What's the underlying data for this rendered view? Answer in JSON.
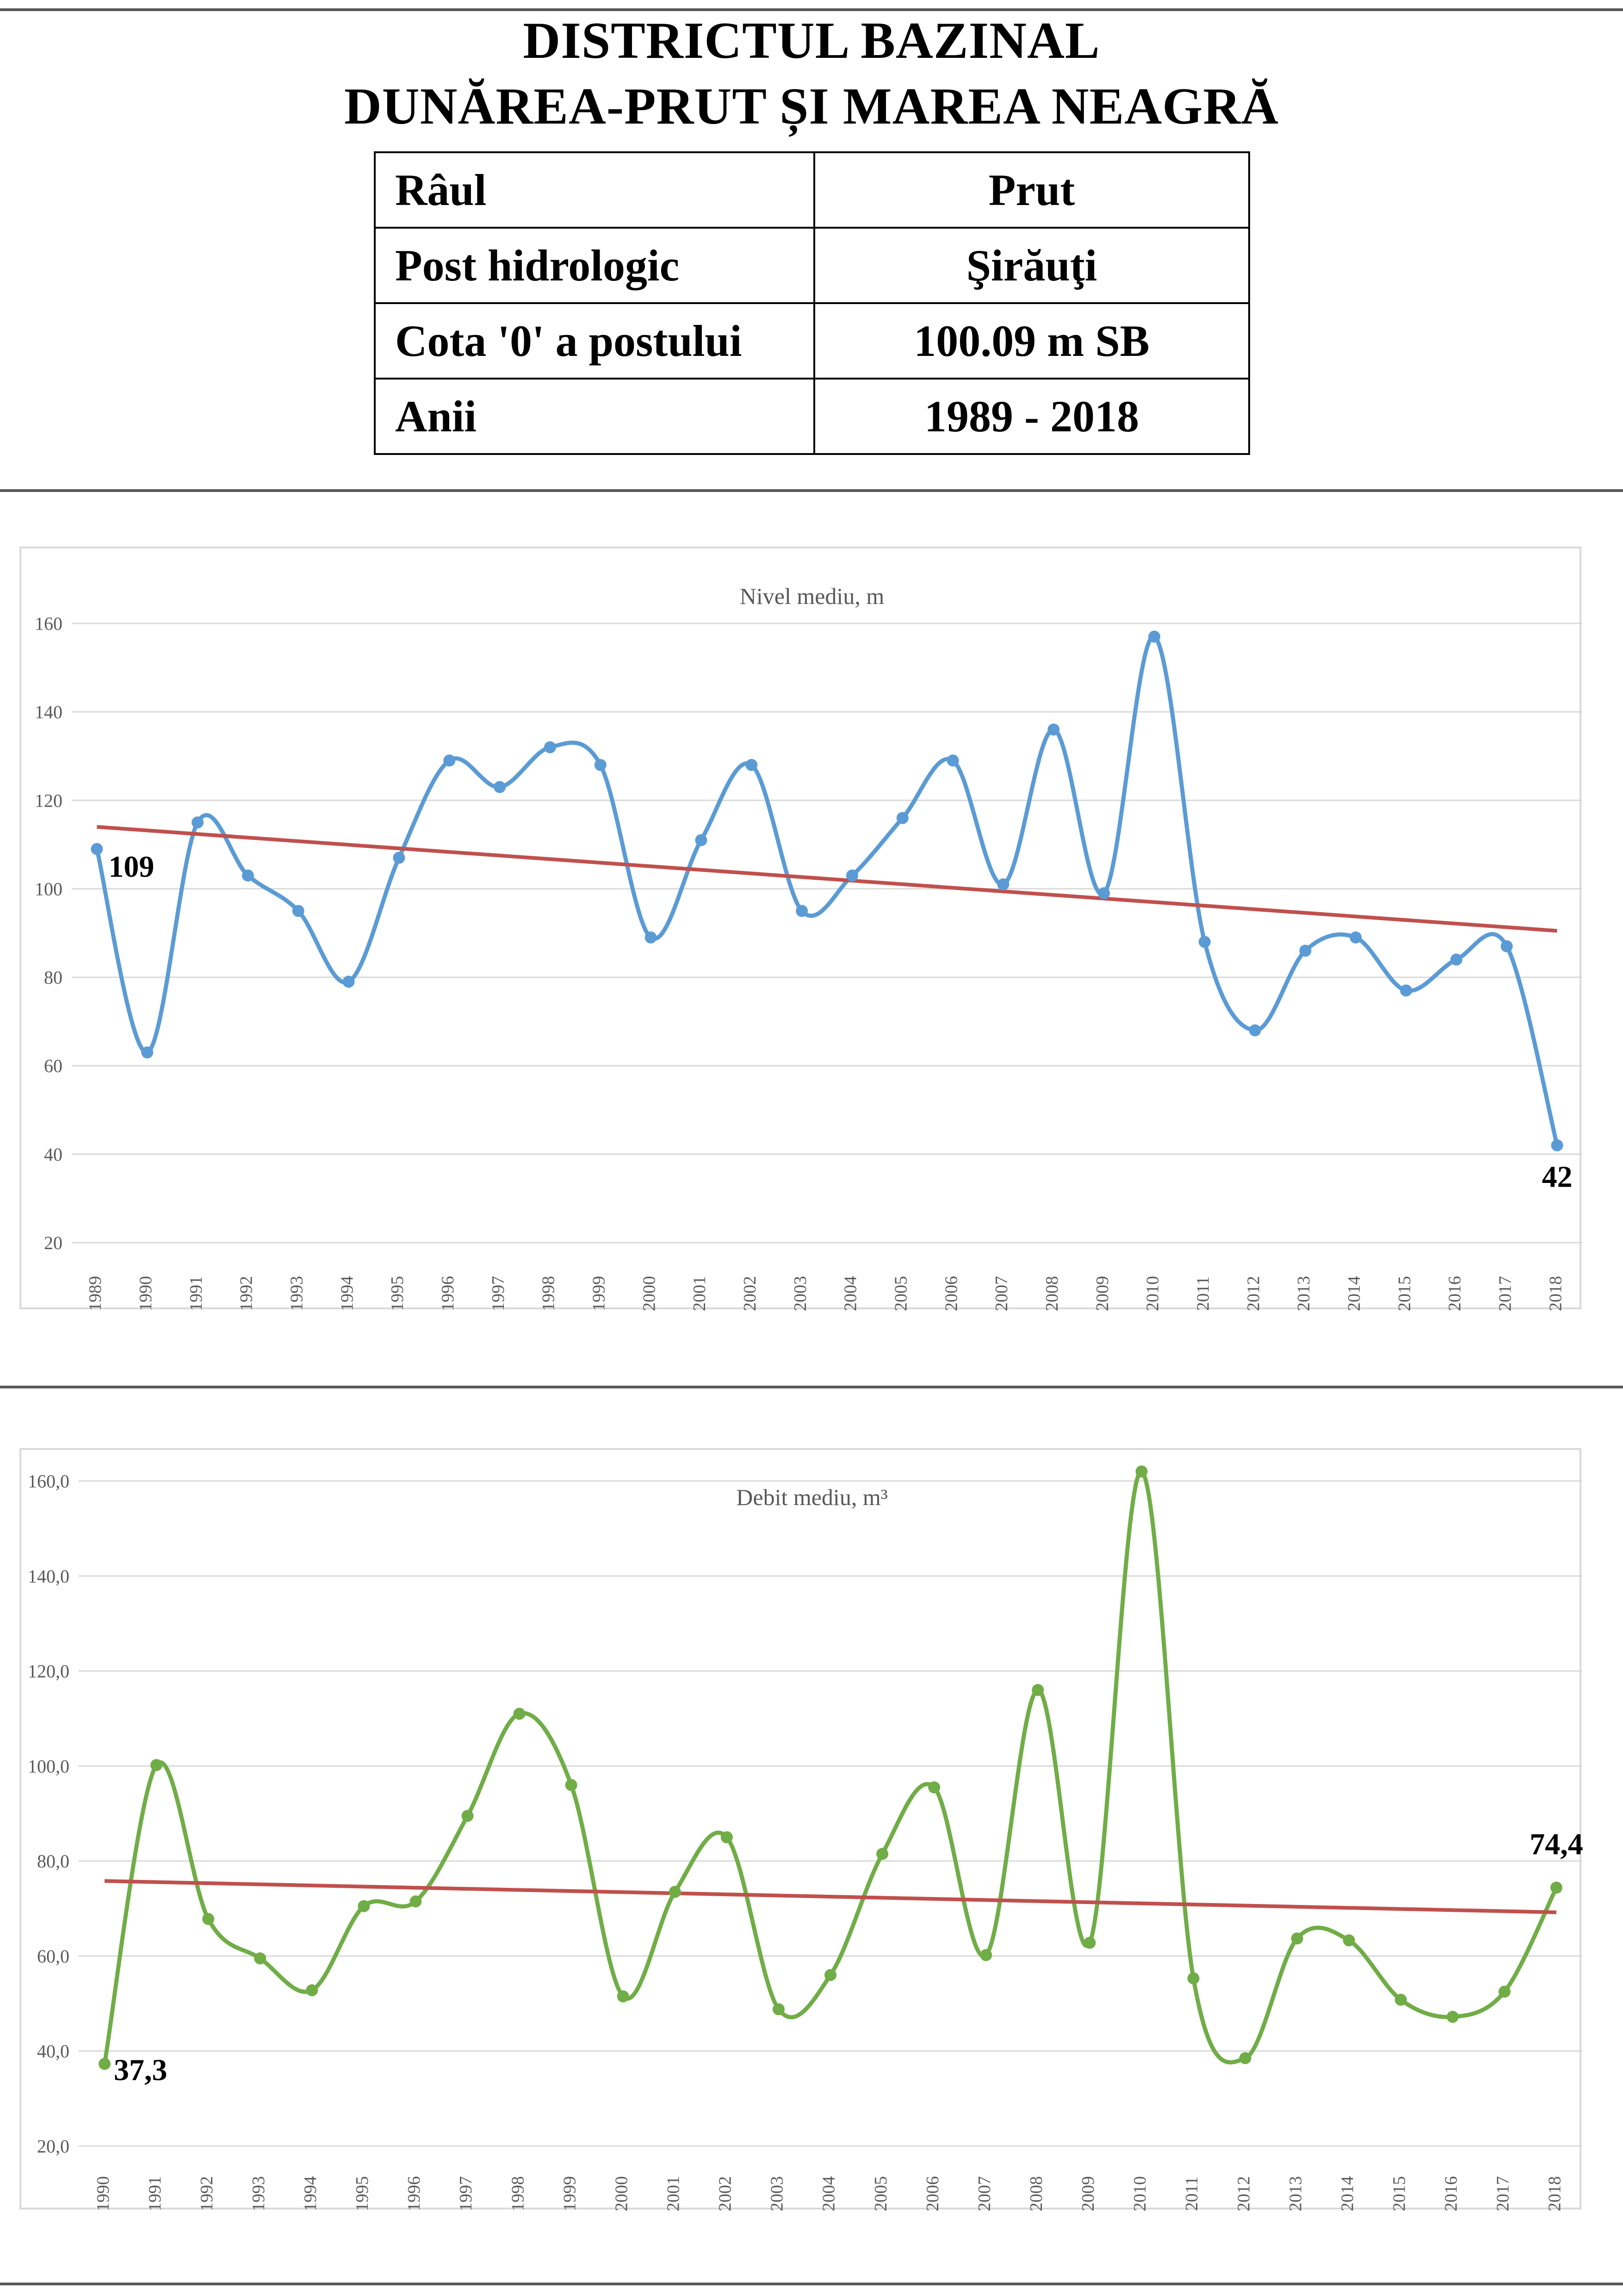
{
  "header": {
    "title_line1": "DISTRICTUL BAZINAL",
    "title_line2": "DUNĂREA-PRUT ȘI MAREA NEAGRĂ"
  },
  "info_table": [
    {
      "label": "Râul",
      "value": "Prut"
    },
    {
      "label": "Post hidrologic",
      "value": "Şirăuţi"
    },
    {
      "label": "Cota '0' a postului",
      "value": "100.09 m SB"
    },
    {
      "label": "Anii",
      "value": "1989 - 2018"
    }
  ],
  "colors": {
    "level_series": "#5b9bd5",
    "discharge_series": "#70ad47",
    "trendline": "#c0504d",
    "gridline": "#d9d9d9",
    "separator": "#595959"
  },
  "chart_data": [
    {
      "type": "line",
      "title": "Nivel mediu, m",
      "categories": [
        "1989",
        "1990",
        "1991",
        "1992",
        "1993",
        "1994",
        "1995",
        "1996",
        "1997",
        "1998",
        "1999",
        "2000",
        "2001",
        "2002",
        "2003",
        "2004",
        "2005",
        "2006",
        "2007",
        "2008",
        "2009",
        "2010",
        "2011",
        "2012",
        "2013",
        "2014",
        "2015",
        "2016",
        "2017",
        "2018"
      ],
      "values": [
        109,
        63,
        115,
        103,
        95,
        79,
        107,
        129,
        123,
        132,
        128,
        89,
        111,
        128,
        95,
        103,
        116,
        129,
        101,
        136,
        99,
        157,
        88,
        68,
        86,
        89,
        77,
        84,
        87,
        42
      ],
      "ylim": [
        20,
        160
      ],
      "yticks": [
        "20",
        "40",
        "60",
        "80",
        "100",
        "120",
        "140",
        "160"
      ],
      "trendline": {
        "start": 114,
        "end": 90.5
      },
      "data_labels": [
        {
          "category": "1989",
          "text": "109"
        },
        {
          "category": "2018",
          "text": "42"
        }
      ],
      "grid": true,
      "legend": "none",
      "smooth": true
    },
    {
      "type": "line",
      "title": "Debit mediu, m³",
      "categories": [
        "1990",
        "1991",
        "1992",
        "1993",
        "1994",
        "1995",
        "1996",
        "1997",
        "1998",
        "1999",
        "2000",
        "2001",
        "2002",
        "2003",
        "2004",
        "2005",
        "2006",
        "2007",
        "2008",
        "2009",
        "2010",
        "2011",
        "2012",
        "2013",
        "2014",
        "2015",
        "2016",
        "2017",
        "2018"
      ],
      "values": [
        37.3,
        100.2,
        67.8,
        59.5,
        52.8,
        70.5,
        71.5,
        89.5,
        111.0,
        96.0,
        51.5,
        73.5,
        85.0,
        48.8,
        56.0,
        81.5,
        95.5,
        60.2,
        116.0,
        62.8,
        162.0,
        55.3,
        38.5,
        63.7,
        63.3,
        50.8,
        47.2,
        52.5,
        74.4
      ],
      "ylim": [
        20,
        170
      ],
      "yticks": [
        "20,0",
        "40,0",
        "60,0",
        "80,0",
        "100,0",
        "120,0",
        "140,0",
        "160,0"
      ],
      "trendline": {
        "start": 75.8,
        "end": 69.2
      },
      "data_labels": [
        {
          "category": "1990",
          "text": "37,3"
        },
        {
          "category": "2018",
          "text": "74,4"
        }
      ],
      "grid": true,
      "legend": "none",
      "smooth": true
    }
  ]
}
